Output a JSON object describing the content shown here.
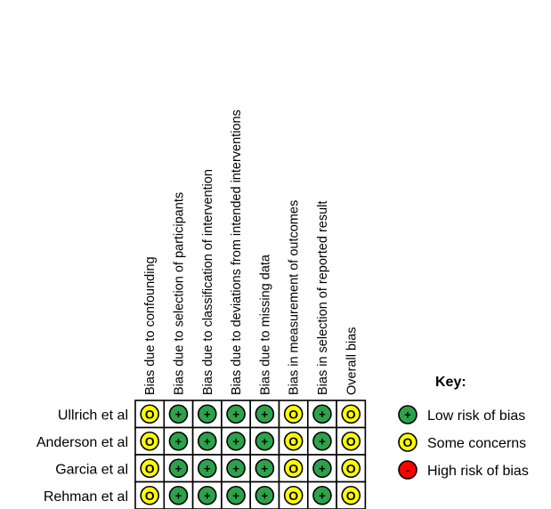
{
  "columns": [
    "Bias due to confounding",
    "Bias due to selection of participants",
    "Bias due to classification of intervention",
    "Bias due to deviations from intended interventions",
    "Bias due to missing data",
    "Bias in measurement of outcomes",
    "Bias in selection of reported result",
    "Overall bias"
  ],
  "rows": [
    {
      "study": "Ullrich et al",
      "judgements": [
        "some",
        "low",
        "low",
        "low",
        "low",
        "some",
        "low",
        "some"
      ]
    },
    {
      "study": "Anderson et al",
      "judgements": [
        "some",
        "low",
        "low",
        "low",
        "low",
        "some",
        "low",
        "some"
      ]
    },
    {
      "study": "Garcia et al",
      "judgements": [
        "some",
        "low",
        "low",
        "low",
        "low",
        "some",
        "low",
        "some"
      ]
    },
    {
      "study": "Rehman et al",
      "judgements": [
        "some",
        "low",
        "low",
        "low",
        "low",
        "some",
        "low",
        "some"
      ]
    }
  ],
  "key": {
    "title": "Key:",
    "items": [
      {
        "level": "low",
        "label": "Low risk of bias"
      },
      {
        "level": "some",
        "label": "Some concerns"
      },
      {
        "level": "high",
        "label": "High risk of bias"
      }
    ]
  },
  "levels": {
    "low": {
      "symbol": "+",
      "color": "#2ca24a"
    },
    "some": {
      "symbol": "O",
      "color": "#ffff00"
    },
    "high": {
      "symbol": "-",
      "color": "#ff0000"
    }
  }
}
